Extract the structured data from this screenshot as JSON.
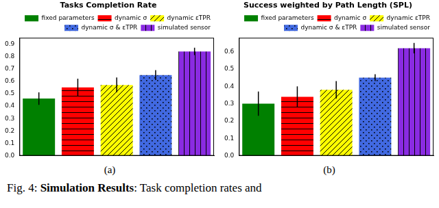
{
  "chart_data": [
    {
      "type": "bar",
      "title": "Tasks Completion Rate",
      "panel_label": "(a)",
      "categories": [
        null,
        null,
        null,
        null,
        null
      ],
      "series": [
        {
          "name": "fixed parameters",
          "color": "#008000",
          "values": [
            0.46,
            null,
            null,
            null,
            null
          ],
          "errors": [
            0.05,
            null,
            null,
            null,
            null
          ]
        },
        {
          "name": "dynamic σ",
          "color": "#ff0000",
          "values": [
            null,
            0.55,
            null,
            null,
            null
          ],
          "errors": [
            null,
            0.07,
            null,
            null,
            null
          ]
        },
        {
          "name": "dynamic εTPR",
          "color": "#ffff00",
          "values": [
            null,
            null,
            0.57,
            null,
            null
          ],
          "errors": [
            null,
            null,
            0.06,
            null,
            null
          ]
        },
        {
          "name": "dynamic σ & εTPR",
          "color": "#4169e1",
          "values": [
            null,
            null,
            null,
            0.65,
            null
          ],
          "errors": [
            null,
            null,
            null,
            0.04,
            null
          ]
        },
        {
          "name": "simulated sensor",
          "color": "#8a2be2",
          "values": [
            null,
            null,
            null,
            null,
            0.84
          ],
          "errors": [
            null,
            null,
            null,
            null,
            0.03
          ]
        }
      ],
      "ylim": [
        0,
        0.95
      ],
      "yticks": [
        {
          "value": 0,
          "label": "0.0"
        },
        {
          "value": 0.1,
          "label": "0.1"
        },
        {
          "value": 0.2,
          "label": "0.2"
        },
        {
          "value": 0.3,
          "label": "0.3"
        },
        {
          "value": 0.4,
          "label": "0.4"
        },
        {
          "value": 0.5,
          "label": "0.5"
        },
        {
          "value": 0.6,
          "label": "0.6"
        },
        {
          "value": 0.7,
          "label": "0.7"
        },
        {
          "value": 0.8,
          "label": "0.8"
        },
        {
          "value": 0.9,
          "label": "0.9"
        }
      ],
      "grid": false,
      "legend": "upper right",
      "tick_labels": "y"
    },
    {
      "type": "bar",
      "title": "Success weighted by Path Length (SPL)",
      "panel_label": "(b)",
      "categories": [
        null,
        null,
        null,
        null,
        null
      ],
      "series": [
        {
          "name": "fixed parameters",
          "color": "#008000",
          "values": [
            0.3,
            null,
            null,
            null,
            null
          ],
          "errors": [
            0.07,
            null,
            null,
            null,
            null
          ]
        },
        {
          "name": "dynamic σ",
          "color": "#ff0000",
          "values": [
            null,
            0.34,
            null,
            null,
            null
          ],
          "errors": [
            null,
            0.06,
            null,
            null,
            null
          ]
        },
        {
          "name": "dynamic εTPR",
          "color": "#ffff00",
          "values": [
            null,
            null,
            0.38,
            null,
            null
          ],
          "errors": [
            null,
            null,
            0.05,
            null,
            null
          ]
        },
        {
          "name": "dynamic σ & εTPR",
          "color": "#4169e1",
          "values": [
            null,
            null,
            null,
            0.45,
            null
          ],
          "errors": [
            null,
            null,
            null,
            0.02,
            null
          ]
        },
        {
          "name": "simulated sensor",
          "color": "#8a2be2",
          "values": [
            null,
            null,
            null,
            null,
            0.62
          ],
          "errors": [
            null,
            null,
            null,
            null,
            0.03
          ]
        }
      ],
      "ylim": [
        0,
        0.68
      ],
      "yticks": [
        {
          "value": 0,
          "label": "0.0"
        },
        {
          "value": 0.1,
          "label": "0.1"
        },
        {
          "value": 0.2,
          "label": "0.2"
        },
        {
          "value": 0.3,
          "label": "0.3"
        },
        {
          "value": 0.4,
          "label": "0.4"
        },
        {
          "value": 0.5,
          "label": "0.5"
        },
        {
          "value": 0.6,
          "label": "0.6"
        }
      ],
      "grid": false,
      "legend": "upper right",
      "tick_labels": "y"
    }
  ],
  "caption": {
    "label": "Fig. 4:",
    "bold": "Simulation Results",
    "text": ": Task completion rates and"
  }
}
